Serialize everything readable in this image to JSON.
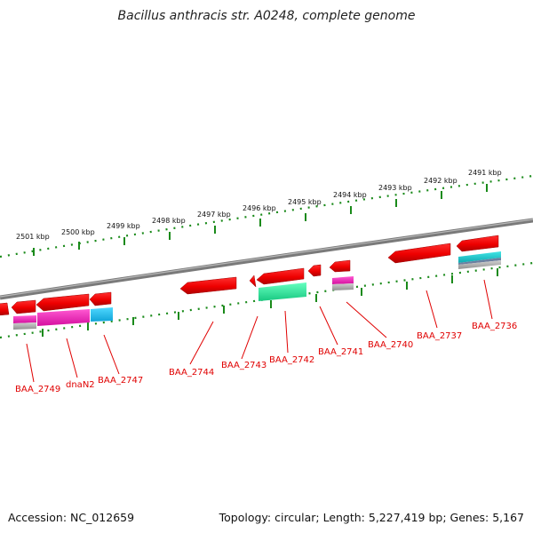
{
  "title": "Bacillus anthracis str. A0248, complete genome",
  "footer": {
    "accession": "Accession: NC_012659",
    "stats": "Topology: circular; Length: 5,227,419 bp; Genes: 5,167"
  },
  "colors": {
    "backbone": "#808080",
    "tick": "#1a8a1a",
    "gene": "#ff0000",
    "gene_label": "#e00000",
    "feature_magenta": "#ff33cc",
    "feature_cyan": "#22c4f0",
    "feature_green": "#33f0a0",
    "feature_teal": "#20c8c8",
    "feature_gray": "#a8a8a8"
  },
  "scale_labels": [
    "2501 kbp",
    "2500 kbp",
    "2499 kbp",
    "2498 kbp",
    "2497 kbp",
    "2496 kbp",
    "2495 kbp",
    "2494 kbp",
    "2493 kbp",
    "2492 kbp",
    "2491 kbp"
  ],
  "gene_labels": [
    "BAA_2749",
    "dnaN2",
    "BAA_2747",
    "BAA_2744",
    "BAA_2743",
    "BAA_2742",
    "BAA_2741",
    "BAA_2740",
    "BAA_2737",
    "BAA_2736"
  ]
}
